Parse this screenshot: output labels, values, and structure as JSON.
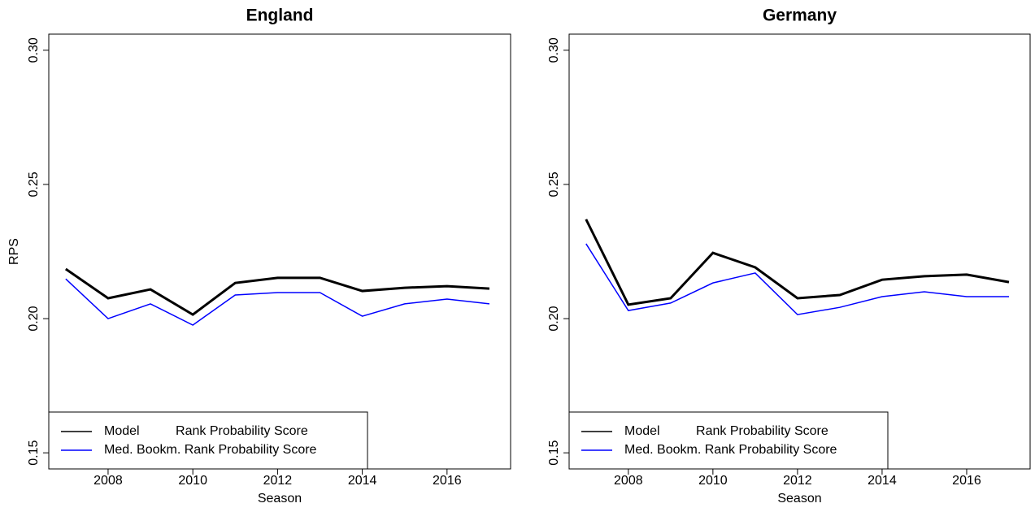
{
  "chart_data": [
    {
      "type": "line",
      "title": "England",
      "xlabel": "Season",
      "ylabel": "RPS",
      "x": [
        2007,
        2008,
        2009,
        2010,
        2011,
        2012,
        2013,
        2014,
        2015,
        2016,
        2017
      ],
      "series": [
        {
          "name": "Model          Rank Probability Score",
          "color": "#000000",
          "values": [
            0.2185,
            0.2076,
            0.2109,
            0.2015,
            0.2133,
            0.2152,
            0.2152,
            0.2103,
            0.2115,
            0.2121,
            0.2112
          ]
        },
        {
          "name": "Med. Bookm. Rank Probability Score",
          "color": "#0000ff",
          "values": [
            0.2148,
            0.2,
            0.2055,
            0.1976,
            0.2088,
            0.2097,
            0.2097,
            0.2009,
            0.2055,
            0.2073,
            0.2055
          ]
        }
      ],
      "xlim": [
        2006.6,
        2017.5
      ],
      "ylim": [
        0.144,
        0.306
      ],
      "xticks": [
        2008,
        2010,
        2012,
        2014,
        2016
      ],
      "yticks": [
        {
          "value": 0.15,
          "label": "0.15"
        },
        {
          "value": 0.2,
          "label": "0.20"
        },
        {
          "value": 0.25,
          "label": "0.25"
        },
        {
          "value": 0.3,
          "label": "0.30"
        }
      ],
      "legend": "bottom-left"
    },
    {
      "type": "line",
      "title": "Germany",
      "xlabel": "Season",
      "x": [
        2007,
        2008,
        2009,
        2010,
        2011,
        2012,
        2013,
        2014,
        2015,
        2016,
        2017
      ],
      "series": [
        {
          "name": "Model          Rank Probability Score",
          "color": "#000000",
          "values": [
            0.237,
            0.2052,
            0.2076,
            0.2245,
            0.2191,
            0.2076,
            0.2088,
            0.2145,
            0.2158,
            0.2164,
            0.2136
          ]
        },
        {
          "name": "Med. Bookm. Rank Probability Score",
          "color": "#0000ff",
          "values": [
            0.2279,
            0.203,
            0.2058,
            0.2133,
            0.217,
            0.2015,
            0.2042,
            0.2082,
            0.21,
            0.2082,
            0.2082
          ]
        }
      ],
      "xlim": [
        2006.6,
        2017.5
      ],
      "ylim": [
        0.144,
        0.306
      ],
      "xticks": [
        2008,
        2010,
        2012,
        2014,
        2016
      ],
      "yticks": [
        {
          "value": 0.15,
          "label": "0.15"
        },
        {
          "value": 0.2,
          "label": "0.20"
        },
        {
          "value": 0.25,
          "label": "0.25"
        },
        {
          "value": 0.3,
          "label": "0.30"
        }
      ],
      "legend": "bottom-left"
    }
  ]
}
